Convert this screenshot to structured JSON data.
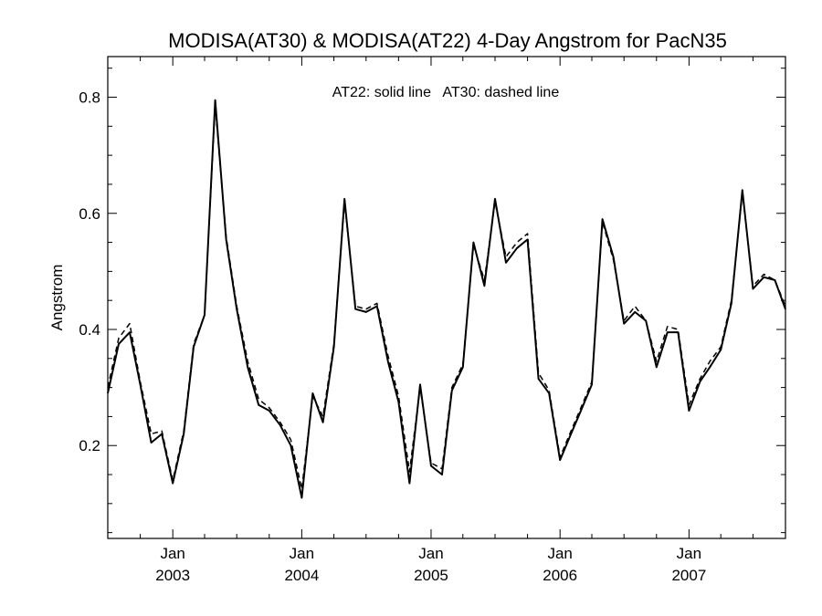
{
  "chart_data": {
    "type": "line",
    "title": "MODISA(AT30) & MODISA(AT22) 4-Day Angstrom for PacN35",
    "annotation": "AT22: solid line   AT30: dashed line",
    "ylabel": "Angstrom",
    "xlabel": "",
    "xlim": [
      "2002-07-01",
      "2007-10-01"
    ],
    "ylim": [
      0.04,
      0.87
    ],
    "yticks": [
      0.2,
      0.4,
      0.6,
      0.8
    ],
    "yticks_labels": [
      "0.2",
      "0.4",
      "0.6",
      "0.8"
    ],
    "x_major_ticks": [
      {
        "date": "2003-01-01",
        "month": "Jan",
        "year": "2003"
      },
      {
        "date": "2004-01-01",
        "month": "Jan",
        "year": "2004"
      },
      {
        "date": "2005-01-01",
        "month": "Jan",
        "year": "2005"
      },
      {
        "date": "2006-01-01",
        "month": "Jan",
        "year": "2006"
      },
      {
        "date": "2007-01-01",
        "month": "Jan",
        "year": "2007"
      }
    ],
    "series": [
      {
        "name": "AT22",
        "style": "solid",
        "x": [
          "2002-07-01",
          "2002-08-01",
          "2002-09-01",
          "2002-10-01",
          "2002-11-01",
          "2002-12-01",
          "2003-01-01",
          "2003-02-01",
          "2003-03-01",
          "2003-04-01",
          "2003-05-01",
          "2003-06-01",
          "2003-07-01",
          "2003-08-01",
          "2003-09-01",
          "2003-10-01",
          "2003-11-01",
          "2003-12-01",
          "2004-01-01",
          "2004-02-01",
          "2004-03-01",
          "2004-04-01",
          "2004-05-01",
          "2004-06-01",
          "2004-07-01",
          "2004-08-01",
          "2004-09-01",
          "2004-10-01",
          "2004-11-01",
          "2004-12-01",
          "2005-01-01",
          "2005-02-01",
          "2005-03-01",
          "2005-04-01",
          "2005-05-01",
          "2005-06-01",
          "2005-07-01",
          "2005-08-01",
          "2005-09-01",
          "2005-10-01",
          "2005-11-01",
          "2005-12-01",
          "2006-01-01",
          "2006-02-01",
          "2006-03-01",
          "2006-04-01",
          "2006-05-01",
          "2006-06-01",
          "2006-07-01",
          "2006-08-01",
          "2006-09-01",
          "2006-10-01",
          "2006-11-01",
          "2006-12-01",
          "2007-01-01",
          "2007-02-01",
          "2007-03-01",
          "2007-04-01",
          "2007-05-01",
          "2007-06-01",
          "2007-07-01",
          "2007-08-01",
          "2007-09-01",
          "2007-10-01"
        ],
        "values": [
          0.29,
          0.375,
          0.395,
          0.305,
          0.205,
          0.22,
          0.135,
          0.22,
          0.37,
          0.425,
          0.795,
          0.555,
          0.435,
          0.335,
          0.27,
          0.26,
          0.235,
          0.2,
          0.11,
          0.29,
          0.24,
          0.37,
          0.625,
          0.435,
          0.43,
          0.44,
          0.345,
          0.275,
          0.135,
          0.305,
          0.165,
          0.15,
          0.295,
          0.335,
          0.55,
          0.475,
          0.625,
          0.515,
          0.54,
          0.555,
          0.315,
          0.29,
          0.175,
          0.22,
          0.26,
          0.305,
          0.59,
          0.525,
          0.41,
          0.43,
          0.415,
          0.335,
          0.395,
          0.395,
          0.26,
          0.31,
          0.335,
          0.365,
          0.445,
          0.64,
          0.47,
          0.49,
          0.485,
          0.435
        ]
      },
      {
        "name": "AT30",
        "style": "dashed",
        "x": [
          "2002-07-01",
          "2002-08-01",
          "2002-09-01",
          "2002-10-01",
          "2002-11-01",
          "2002-12-01",
          "2003-01-01",
          "2003-02-01",
          "2003-03-01",
          "2003-04-01",
          "2003-05-01",
          "2003-06-01",
          "2003-07-01",
          "2003-08-01",
          "2003-09-01",
          "2003-10-01",
          "2003-11-01",
          "2003-12-01",
          "2004-01-01",
          "2004-02-01",
          "2004-03-01",
          "2004-04-01",
          "2004-05-01",
          "2004-06-01",
          "2004-07-01",
          "2004-08-01",
          "2004-09-01",
          "2004-10-01",
          "2004-11-01",
          "2004-12-01",
          "2005-01-01",
          "2005-02-01",
          "2005-03-01",
          "2005-04-01",
          "2005-05-01",
          "2005-06-01",
          "2005-07-01",
          "2005-08-01",
          "2005-09-01",
          "2005-10-01",
          "2005-11-01",
          "2005-12-01",
          "2006-01-01",
          "2006-02-01",
          "2006-03-01",
          "2006-04-01",
          "2006-05-01",
          "2006-06-01",
          "2006-07-01",
          "2006-08-01",
          "2006-09-01",
          "2006-10-01",
          "2006-11-01",
          "2006-12-01",
          "2007-01-01",
          "2007-02-01",
          "2007-03-01",
          "2007-04-01",
          "2007-05-01",
          "2007-06-01",
          "2007-07-01",
          "2007-08-01",
          "2007-09-01",
          "2007-10-01"
        ],
        "values": [
          0.3,
          0.385,
          0.41,
          0.31,
          0.22,
          0.225,
          0.14,
          0.225,
          0.375,
          0.425,
          0.785,
          0.56,
          0.44,
          0.345,
          0.28,
          0.265,
          0.24,
          0.21,
          0.125,
          0.285,
          0.25,
          0.375,
          0.62,
          0.44,
          0.435,
          0.445,
          0.355,
          0.285,
          0.155,
          0.3,
          0.17,
          0.16,
          0.3,
          0.34,
          0.545,
          0.485,
          0.62,
          0.525,
          0.55,
          0.565,
          0.325,
          0.295,
          0.18,
          0.225,
          0.265,
          0.31,
          0.585,
          0.52,
          0.415,
          0.44,
          0.415,
          0.345,
          0.405,
          0.4,
          0.27,
          0.315,
          0.345,
          0.37,
          0.45,
          0.635,
          0.475,
          0.495,
          0.485,
          0.44
        ]
      }
    ]
  }
}
